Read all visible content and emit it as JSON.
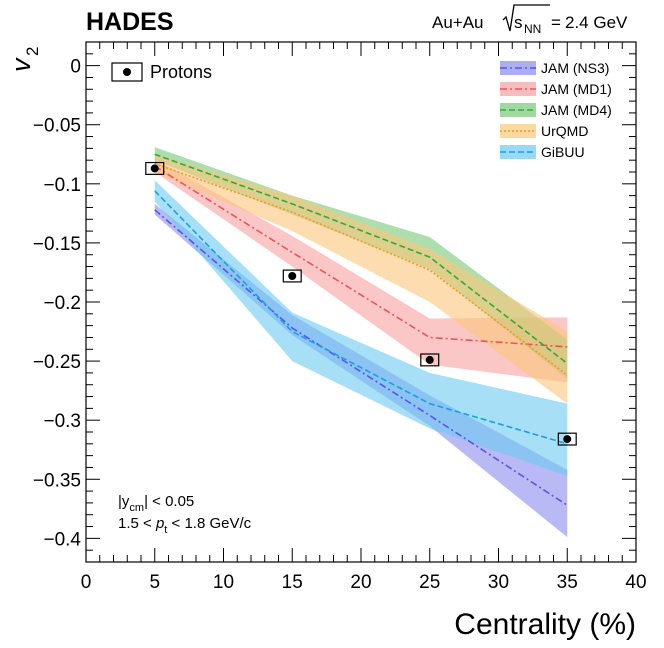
{
  "chart_data": {
    "type": "line",
    "title": "HADES",
    "system": {
      "collision": "Au+Au",
      "energy": "2.4 GeV"
    },
    "xlabel": "Centrality (%)",
    "ylabel": {
      "symbol": "v",
      "subscript": "2"
    },
    "xlim": [
      0,
      40
    ],
    "ylim": [
      -0.42,
      0.02
    ],
    "x_ticks": [
      0,
      5,
      10,
      15,
      20,
      25,
      30,
      35,
      40
    ],
    "y_ticks": [
      0,
      -0.05,
      -0.1,
      -0.15,
      -0.2,
      -0.25,
      -0.3,
      -0.35,
      -0.4
    ],
    "y_tick_labels": [
      "0",
      "−0.05",
      "−0.1",
      "−0.15",
      "−0.2",
      "−0.25",
      "−0.3",
      "−0.35",
      "−0.4"
    ],
    "cuts": {
      "rapidity": {
        "prefix": "|y",
        "sub": "cm",
        "suffix": "| < 0.05"
      },
      "pt": {
        "prefix": "1.5 < ",
        "sym": "p",
        "sub": "t",
        "suffix": " < 1.8 GeV/c"
      }
    },
    "data": {
      "name": "Protons",
      "x": [
        5,
        15,
        25,
        35
      ],
      "y": [
        -0.087,
        -0.178,
        -0.249,
        -0.316
      ],
      "syst_half_width_x": 0.65,
      "syst_half_height_y": 0.005
    },
    "series": [
      {
        "name": "JAM (NS3)",
        "color": "#5555ee",
        "band_color": "#8a8af0",
        "dash": "dashdot",
        "x": [
          5,
          15,
          25,
          35
        ],
        "y": [
          -0.122,
          -0.222,
          -0.296,
          -0.372
        ],
        "band_low": [
          -0.126,
          -0.228,
          -0.305,
          -0.399
        ],
        "band_high": [
          -0.117,
          -0.211,
          -0.279,
          -0.342
        ]
      },
      {
        "name": "JAM (MD1)",
        "color": "#ee5555",
        "band_color": "#f6a0a0",
        "dash": "dashdot",
        "x": [
          5,
          15,
          25,
          35
        ],
        "y": [
          -0.085,
          -0.158,
          -0.23,
          -0.238
        ],
        "band_low": [
          -0.09,
          -0.17,
          -0.253,
          -0.268
        ],
        "band_high": [
          -0.079,
          -0.144,
          -0.214,
          -0.213
        ]
      },
      {
        "name": "JAM (MD4)",
        "color": "#33aa33",
        "band_color": "#78c878",
        "dash": "dash",
        "x": [
          5,
          15,
          25,
          35
        ],
        "y": [
          -0.075,
          -0.117,
          -0.162,
          -0.252
        ],
        "band_low": [
          -0.08,
          -0.126,
          -0.172,
          -0.265
        ],
        "band_high": [
          -0.069,
          -0.11,
          -0.145,
          -0.232
        ]
      },
      {
        "name": "UrQMD",
        "color": "#ee9922",
        "band_color": "#fbc77a",
        "dash": "dot",
        "x": [
          5,
          15,
          25,
          35
        ],
        "y": [
          -0.083,
          -0.124,
          -0.173,
          -0.262
        ],
        "band_low": [
          -0.09,
          -0.14,
          -0.2,
          -0.286
        ],
        "band_high": [
          -0.075,
          -0.11,
          -0.155,
          -0.225
        ]
      },
      {
        "name": "GiBUU",
        "color": "#1aa0e0",
        "band_color": "#6ccaf2",
        "dash": "dash",
        "x": [
          5,
          15,
          25,
          35
        ],
        "y": [
          -0.106,
          -0.225,
          -0.286,
          -0.32
        ],
        "band_low": [
          -0.115,
          -0.25,
          -0.307,
          -0.347
        ],
        "band_high": [
          -0.097,
          -0.209,
          -0.26,
          -0.286
        ]
      }
    ]
  }
}
